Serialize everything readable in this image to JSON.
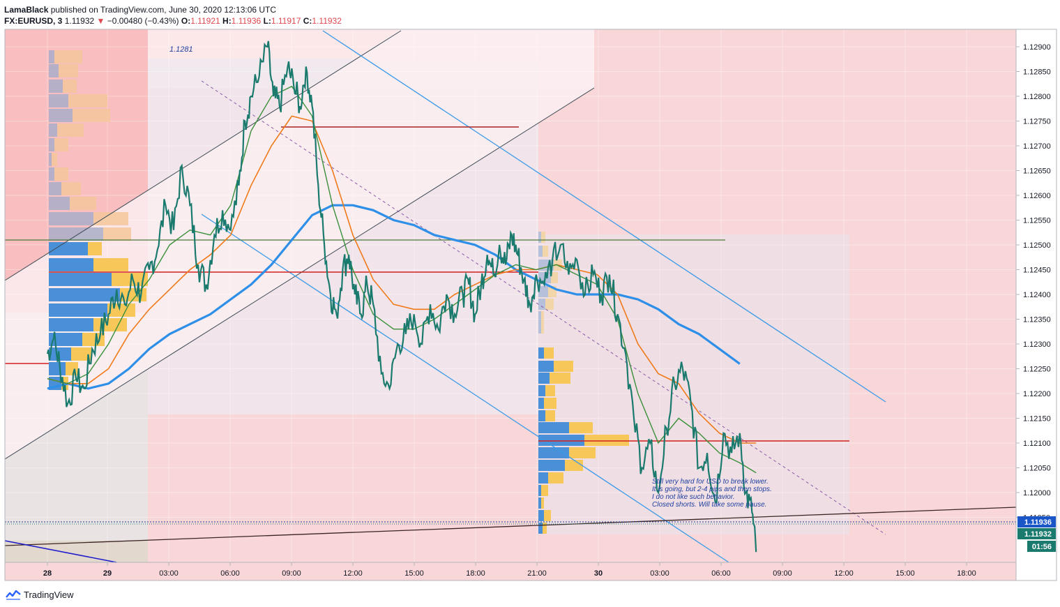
{
  "header": {
    "author": "LamaBlack",
    "published": "published on TradingView.com, June 30, 2020 12:13:06 UTC",
    "symbol": "FX:EURUSD, 3",
    "last": "1.11932",
    "change": "−0.00480 (−0.43%)",
    "o_label": "O:",
    "o": "1.11921",
    "h_label": "H:",
    "h": "1.11936",
    "l_label": "L:",
    "l": "1.11917",
    "c_label": "C:",
    "c": "1.11932"
  },
  "footer": {
    "brand": "TradingView"
  },
  "colors": {
    "candle_line": "#1a7a6e",
    "ma_fast": "#3a8f3a",
    "ma_mid": "#f07a1a",
    "ma_slow": "#2e8fe8",
    "channel": "#3a9ae8",
    "trend_dark": "#3d4a55",
    "level_red": "#d42020",
    "level_green": "#4a7a3a",
    "bg_bear": "#f9d7d9",
    "bg_bull": "#fdebec",
    "vp_up": "#4a90d9",
    "vp_down": "#f7c75a"
  },
  "chart_data": {
    "type": "line",
    "symbol": "FX:EURUSD",
    "timeframe": "3",
    "x_ticks": [
      "28",
      "29",
      "03:00",
      "06:00",
      "09:00",
      "12:00",
      "15:00",
      "18:00",
      "21:00",
      "30",
      "03:00",
      "06:00",
      "09:00",
      "12:00",
      "15:00",
      "18:00"
    ],
    "y_ticks": [
      "1.12900",
      "1.12850",
      "1.12800",
      "1.12750",
      "1.12700",
      "1.12650",
      "1.12600",
      "1.12550",
      "1.12500",
      "1.12450",
      "1.12400",
      "1.12350",
      "1.12300",
      "1.12250",
      "1.12200",
      "1.12150",
      "1.12100",
      "1.12050",
      "1.12000",
      "1.11950"
    ],
    "ylim": [
      1.118,
      1.1295
    ],
    "price_labels": [
      {
        "value": "1.11936",
        "kind": "high"
      },
      {
        "value": "1.11932",
        "kind": "last"
      },
      {
        "value": "01:56",
        "kind": "countdown"
      }
    ],
    "annotation_value": "1.1281",
    "note": [
      "Still very hard for USD to break lower.",
      "It is going, but 2-4 pips and then stops.",
      "I do not like such behavior.",
      "Closed shorts. Will take some pause."
    ],
    "price_series": [
      [
        0,
        1.1228
      ],
      [
        0.3,
        1.1231
      ],
      [
        0.6,
        1.1226
      ],
      [
        1.0,
        1.1218
      ],
      [
        1.4,
        1.1223
      ],
      [
        1.8,
        1.1221
      ],
      [
        2.2,
        1.1229
      ],
      [
        2.6,
        1.1232
      ],
      [
        3.0,
        1.1236
      ],
      [
        3.4,
        1.1241
      ],
      [
        3.8,
        1.1238
      ],
      [
        4.2,
        1.1243
      ],
      [
        4.6,
        1.124
      ],
      [
        5.0,
        1.1245
      ],
      [
        5.4,
        1.1249
      ],
      [
        5.8,
        1.1258
      ],
      [
        6.2,
        1.1253
      ],
      [
        6.6,
        1.1266
      ],
      [
        7.0,
        1.1258
      ],
      [
        7.4,
        1.1246
      ],
      [
        7.8,
        1.1242
      ],
      [
        8.2,
        1.1252
      ],
      [
        8.6,
        1.1257
      ],
      [
        9.0,
        1.1253
      ],
      [
        9.4,
        1.1262
      ],
      [
        9.7,
        1.1275
      ],
      [
        10.0,
        1.128
      ],
      [
        10.4,
        1.1284
      ],
      [
        10.8,
        1.129
      ],
      [
        11.1,
        1.128
      ],
      [
        11.4,
        1.1278
      ],
      [
        11.8,
        1.1286
      ],
      [
        12.1,
        1.1282
      ],
      [
        12.4,
        1.1278
      ],
      [
        12.7,
        1.1286
      ],
      [
        13.0,
        1.1278
      ],
      [
        13.3,
        1.1262
      ],
      [
        13.6,
        1.125
      ],
      [
        13.9,
        1.124
      ],
      [
        14.2,
        1.1236
      ],
      [
        14.5,
        1.1245
      ],
      [
        14.8,
        1.1248
      ],
      [
        15.1,
        1.124
      ],
      [
        15.4,
        1.1236
      ],
      [
        15.7,
        1.1242
      ],
      [
        16.0,
        1.1238
      ],
      [
        16.4,
        1.1224
      ],
      [
        16.8,
        1.1221
      ],
      [
        17.2,
        1.123
      ],
      [
        17.6,
        1.1232
      ],
      [
        18.0,
        1.1236
      ],
      [
        18.4,
        1.123
      ],
      [
        18.8,
        1.1238
      ],
      [
        19.2,
        1.1233
      ],
      [
        19.6,
        1.124
      ],
      [
        20.0,
        1.1236
      ],
      [
        20.4,
        1.124
      ],
      [
        20.7,
        1.1242
      ],
      [
        21.0,
        1.1236
      ],
      [
        21.3,
        1.1242
      ],
      [
        21.6,
        1.1248
      ],
      [
        21.9,
        1.1244
      ],
      [
        22.2,
        1.125
      ],
      [
        22.5,
        1.1246
      ],
      [
        22.8,
        1.1252
      ],
      [
        23.1,
        1.1248
      ],
      [
        23.4,
        1.1243
      ],
      [
        23.7,
        1.1238
      ],
      [
        24.0,
        1.1244
      ],
      [
        24.4,
        1.1242
      ],
      [
        24.8,
        1.1247
      ],
      [
        25.2,
        1.125
      ],
      [
        25.6,
        1.1244
      ],
      [
        26.0,
        1.1247
      ],
      [
        26.4,
        1.124
      ],
      [
        26.8,
        1.1244
      ],
      [
        27.2,
        1.124
      ],
      [
        27.6,
        1.1244
      ],
      [
        28.0,
        1.1236
      ],
      [
        28.4,
        1.1228
      ],
      [
        28.8,
        1.1215
      ],
      [
        29.2,
        1.1205
      ],
      [
        29.6,
        1.121
      ],
      [
        30.0,
        1.12
      ],
      [
        30.4,
        1.1213
      ],
      [
        30.8,
        1.1222
      ],
      [
        31.2,
        1.1225
      ],
      [
        31.6,
        1.1218
      ],
      [
        32.0,
        1.1205
      ],
      [
        32.4,
        1.1208
      ],
      [
        32.8,
        1.1198
      ],
      [
        33.2,
        1.1212
      ],
      [
        33.6,
        1.1208
      ],
      [
        34.0,
        1.1212
      ],
      [
        34.3,
        1.12
      ],
      [
        34.6,
        1.1196
      ],
      [
        34.8,
        1.1188
      ]
    ],
    "ma_fast": [
      [
        0,
        1.1223
      ],
      [
        1,
        1.1222
      ],
      [
        2,
        1.1224
      ],
      [
        3,
        1.123
      ],
      [
        4,
        1.1238
      ],
      [
        5,
        1.1243
      ],
      [
        6,
        1.125
      ],
      [
        7,
        1.1253
      ],
      [
        8,
        1.1252
      ],
      [
        9,
        1.1258
      ],
      [
        10,
        1.1273
      ],
      [
        11,
        1.128
      ],
      [
        12,
        1.1282
      ],
      [
        13,
        1.1276
      ],
      [
        14,
        1.1258
      ],
      [
        15,
        1.1245
      ],
      [
        16,
        1.1236
      ],
      [
        17,
        1.1233
      ],
      [
        18,
        1.1233
      ],
      [
        19,
        1.1235
      ],
      [
        20,
        1.1238
      ],
      [
        21,
        1.1241
      ],
      [
        22,
        1.1244
      ],
      [
        23,
        1.1246
      ],
      [
        24,
        1.1245
      ],
      [
        25,
        1.1246
      ],
      [
        26,
        1.1244
      ],
      [
        27,
        1.1242
      ],
      [
        28,
        1.1235
      ],
      [
        29,
        1.122
      ],
      [
        30,
        1.121
      ],
      [
        31,
        1.1215
      ],
      [
        32,
        1.1212
      ],
      [
        33,
        1.1208
      ],
      [
        34,
        1.1206
      ],
      [
        34.8,
        1.1204
      ]
    ],
    "ma_mid": [
      [
        0,
        1.1223
      ],
      [
        1,
        1.1222
      ],
      [
        2,
        1.1222
      ],
      [
        3,
        1.1225
      ],
      [
        4,
        1.1232
      ],
      [
        5,
        1.1237
      ],
      [
        6,
        1.1241
      ],
      [
        7,
        1.1245
      ],
      [
        8,
        1.1248
      ],
      [
        9,
        1.1252
      ],
      [
        10,
        1.1262
      ],
      [
        11,
        1.127
      ],
      [
        12,
        1.1276
      ],
      [
        13,
        1.1275
      ],
      [
        14,
        1.1265
      ],
      [
        15,
        1.1252
      ],
      [
        16,
        1.1243
      ],
      [
        17,
        1.1238
      ],
      [
        18,
        1.1237
      ],
      [
        19,
        1.1237
      ],
      [
        20,
        1.124
      ],
      [
        21,
        1.1242
      ],
      [
        22,
        1.1244
      ],
      [
        23,
        1.1245
      ],
      [
        24,
        1.1245
      ],
      [
        25,
        1.1246
      ],
      [
        26,
        1.1245
      ],
      [
        27,
        1.1244
      ],
      [
        28,
        1.124
      ],
      [
        29,
        1.123
      ],
      [
        30,
        1.1224
      ],
      [
        31,
        1.1222
      ],
      [
        32,
        1.1216
      ],
      [
        33,
        1.1212
      ],
      [
        34,
        1.121
      ],
      [
        34.8,
        1.121
      ]
    ],
    "ma_slow": [
      [
        0,
        1.1221
      ],
      [
        1,
        1.1222
      ],
      [
        2,
        1.1221
      ],
      [
        3,
        1.1222
      ],
      [
        4,
        1.1225
      ],
      [
        5,
        1.1229
      ],
      [
        6,
        1.1232
      ],
      [
        7,
        1.1234
      ],
      [
        8,
        1.1236
      ],
      [
        9,
        1.1239
      ],
      [
        10,
        1.1242
      ],
      [
        11,
        1.1246
      ],
      [
        12,
        1.1251
      ],
      [
        13,
        1.1256
      ],
      [
        14,
        1.1258
      ],
      [
        15,
        1.1258
      ],
      [
        16,
        1.1257
      ],
      [
        17,
        1.1255
      ],
      [
        18,
        1.1254
      ],
      [
        19,
        1.1252
      ],
      [
        20,
        1.1251
      ],
      [
        21,
        1.125
      ],
      [
        22,
        1.1248
      ],
      [
        23,
        1.1245
      ],
      [
        24,
        1.1243
      ],
      [
        25,
        1.1241
      ],
      [
        26,
        1.124
      ],
      [
        27,
        1.124
      ],
      [
        28,
        1.124
      ],
      [
        29,
        1.1239
      ],
      [
        30,
        1.1237
      ],
      [
        31,
        1.1234
      ],
      [
        32,
        1.1232
      ],
      [
        33,
        1.1229
      ],
      [
        34,
        1.1226
      ]
    ]
  }
}
